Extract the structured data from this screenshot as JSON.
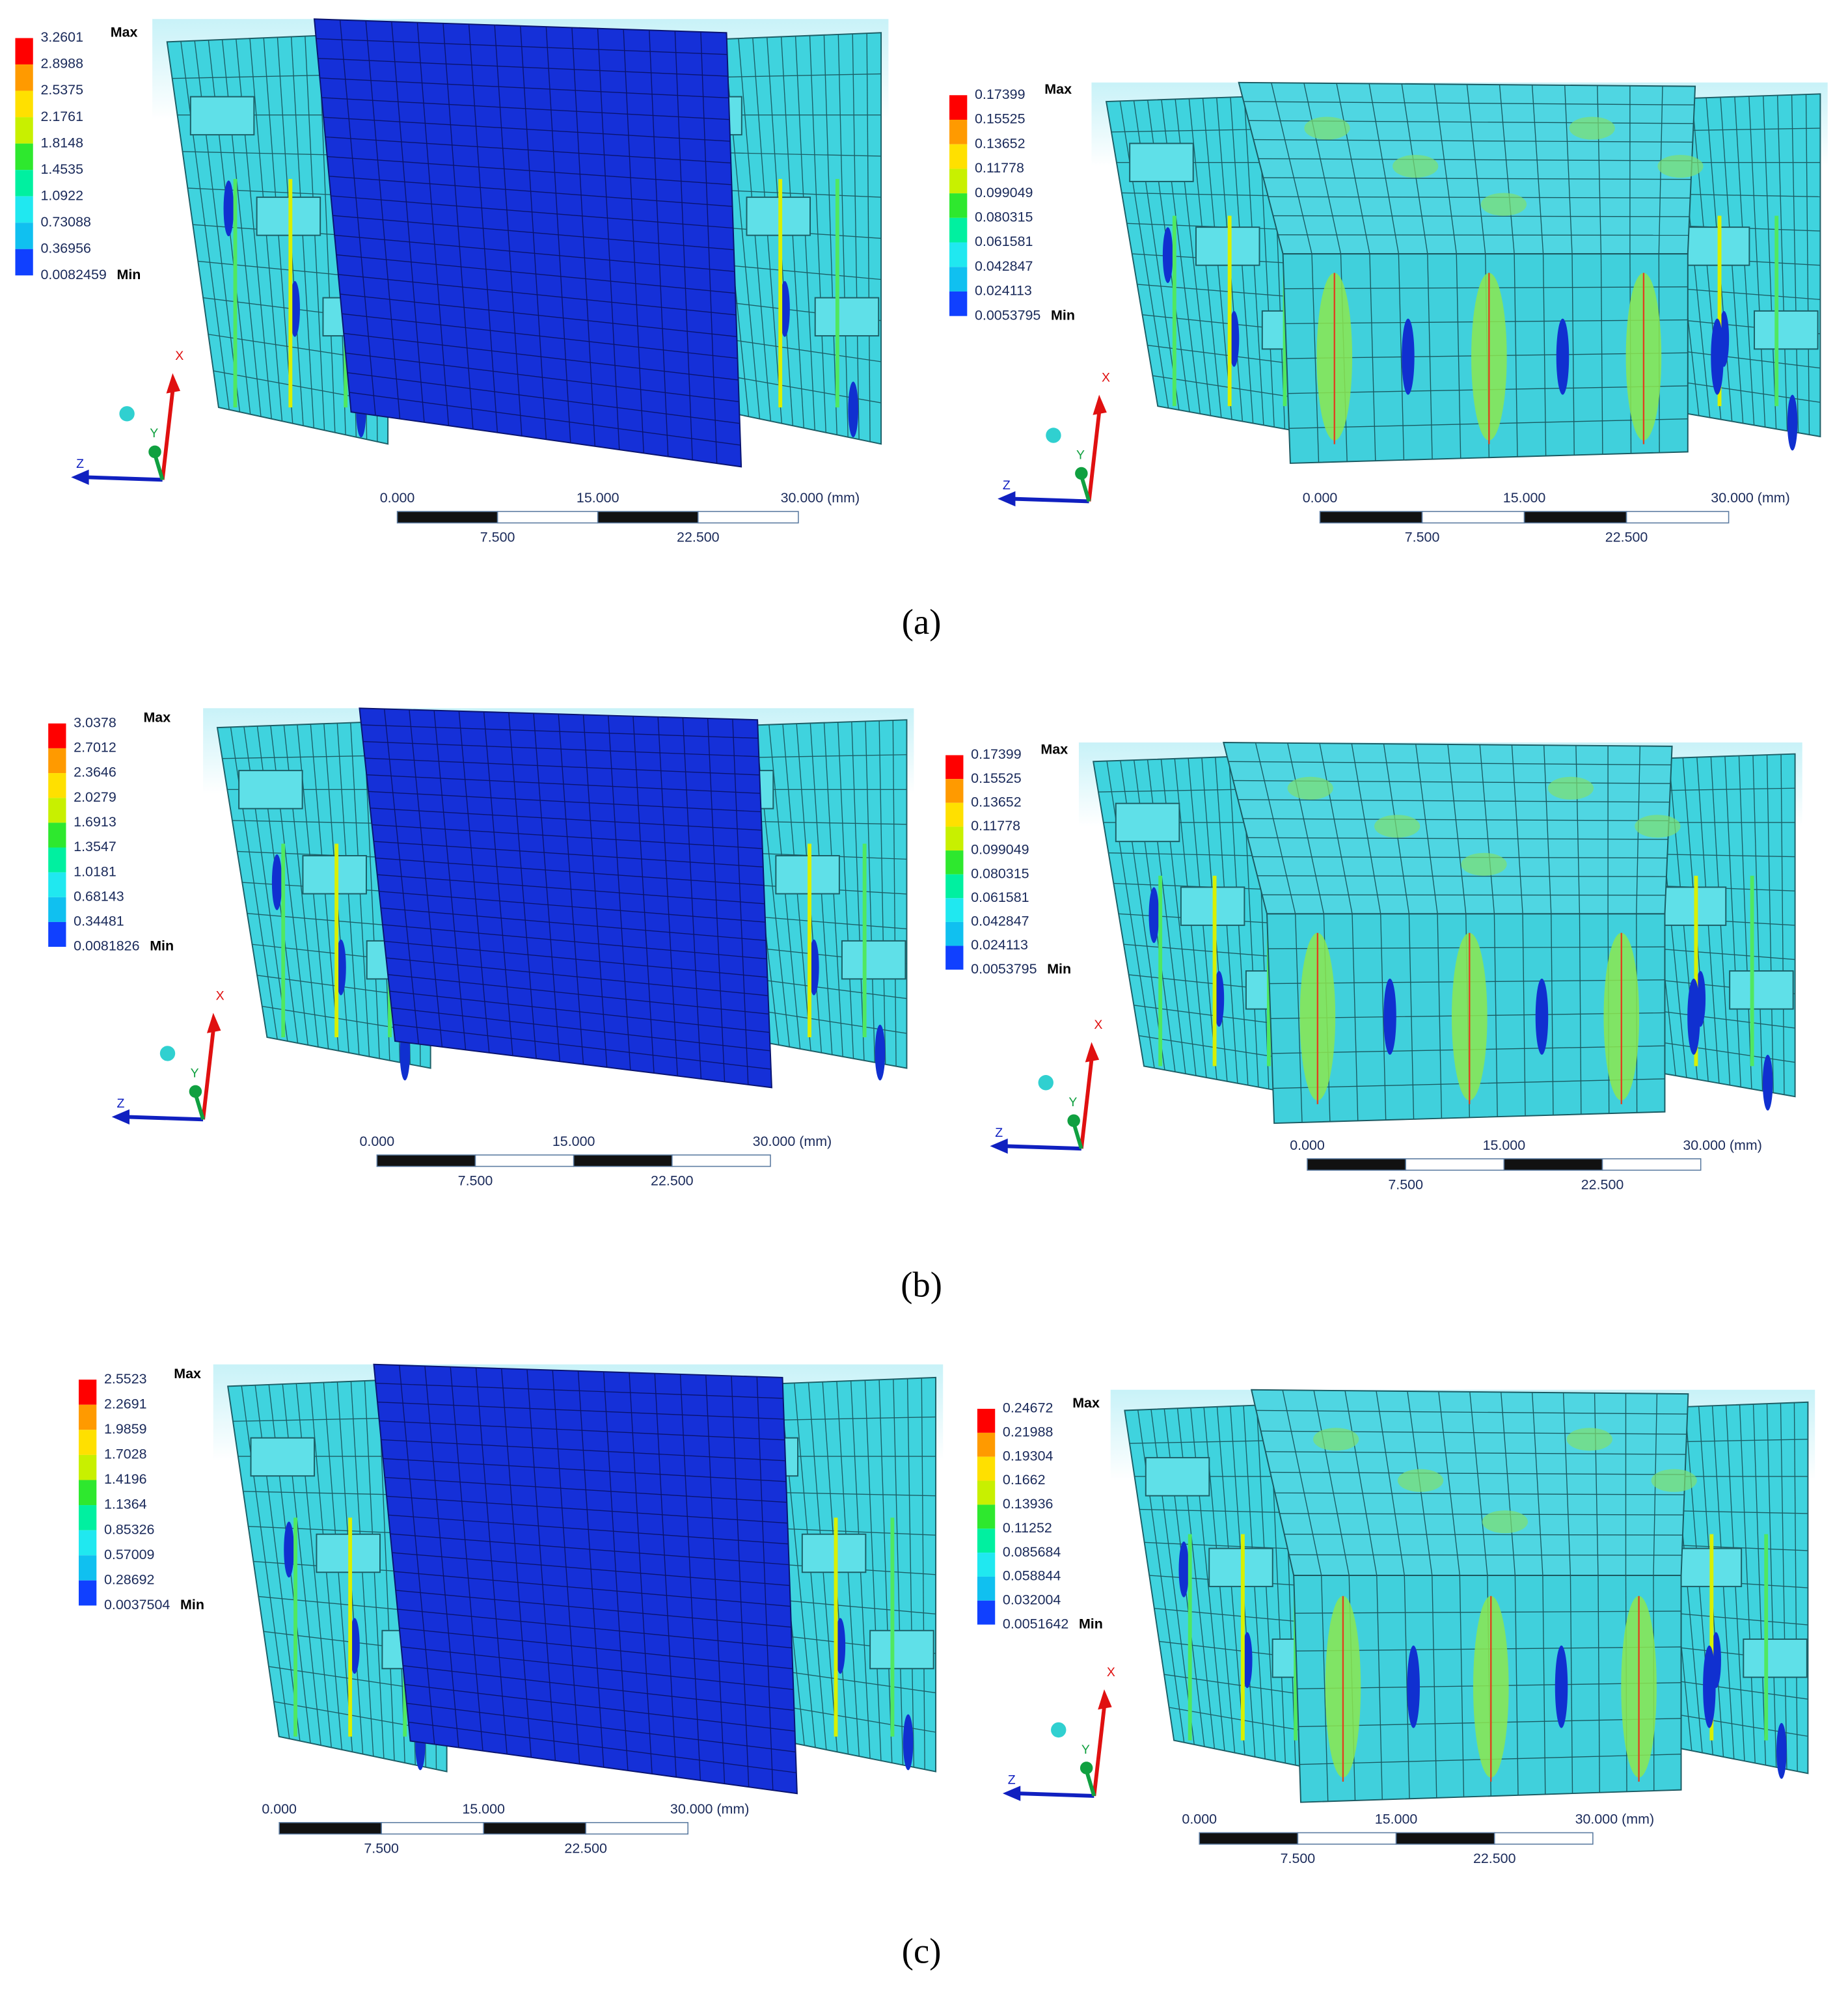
{
  "rows": [
    {
      "caption": "(a)",
      "panels": [
        {
          "legend": [
            3.2601,
            2.8988,
            2.5375,
            2.1761,
            1.8148,
            1.4535,
            1.0922,
            0.73088,
            0.36956,
            0.0082459
          ],
          "max": "Max",
          "min": "Min",
          "axes": {
            "x": "X",
            "y": "Y",
            "z": "Z"
          },
          "scale": {
            "top": [
              "0.000",
              "15.000",
              "30.000 (mm)"
            ],
            "bottom": [
              "7.500",
              "22.500"
            ]
          }
        },
        {
          "legend": [
            0.17399,
            0.15525,
            0.13652,
            0.11778,
            0.099049,
            0.080315,
            0.061581,
            0.042847,
            0.024113,
            0.0053795
          ],
          "max": "Max",
          "min": "Min",
          "axes": {
            "x": "X",
            "y": "Y",
            "z": "Z"
          },
          "scale": {
            "top": [
              "0.000",
              "15.000",
              "30.000 (mm)"
            ],
            "bottom": [
              "7.500",
              "22.500"
            ]
          }
        }
      ]
    },
    {
      "caption": "(b)",
      "panels": [
        {
          "legend": [
            3.0378,
            2.7012,
            2.3646,
            2.0279,
            1.6913,
            1.3547,
            1.0181,
            0.68143,
            0.34481,
            0.0081826
          ],
          "max": "Max",
          "min": "Min",
          "axes": {
            "x": "X",
            "y": "Y",
            "z": "Z"
          },
          "scale": {
            "top": [
              "0.000",
              "15.000",
              "30.000 (mm)"
            ],
            "bottom": [
              "7.500",
              "22.500"
            ]
          }
        },
        {
          "legend": [
            0.17399,
            0.15525,
            0.13652,
            0.11778,
            0.099049,
            0.080315,
            0.061581,
            0.042847,
            0.024113,
            0.0053795
          ],
          "max": "Max",
          "min": "Min",
          "axes": {
            "x": "X",
            "y": "Y",
            "z": "Z"
          },
          "scale": {
            "top": [
              "0.000",
              "15.000",
              "30.000 (mm)"
            ],
            "bottom": [
              "7.500",
              "22.500"
            ]
          }
        }
      ]
    },
    {
      "caption": "(c)",
      "panels": [
        {
          "legend": [
            2.5523,
            2.2691,
            1.9859,
            1.7028,
            1.4196,
            1.1364,
            0.85326,
            0.57009,
            0.28692,
            0.0037504
          ],
          "max": "Max",
          "min": "Min",
          "scale": {
            "top": [
              "0.000",
              "15.000",
              "30.000 (mm)"
            ],
            "bottom": [
              "7.500",
              "22.500"
            ]
          }
        },
        {
          "legend": [
            0.24672,
            0.21988,
            0.19304,
            0.1662,
            0.13936,
            0.11252,
            0.085684,
            0.058844,
            0.032004,
            0.0051642
          ],
          "max": "Max",
          "min": "Min",
          "axes": {
            "x": "X",
            "y": "Y",
            "z": "Z"
          },
          "scale": {
            "top": [
              "0.000",
              "15.000",
              "30.000 (mm)"
            ],
            "bottom": [
              "7.500",
              "22.500"
            ]
          }
        }
      ]
    }
  ]
}
